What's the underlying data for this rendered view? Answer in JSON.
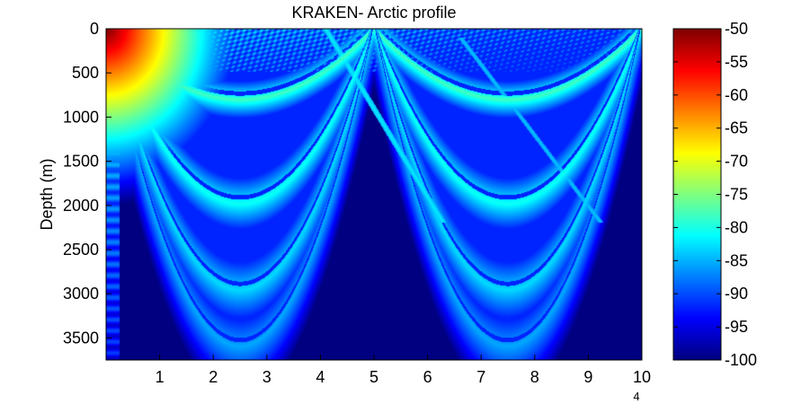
{
  "chart_data": {
    "type": "heatmap",
    "title": "KRAKEN- Arctic profile",
    "ylabel": "Depth (m)",
    "xlabel": "",
    "x_range": [
      0,
      10
    ],
    "x_ticks": [
      "1",
      "2",
      "3",
      "4",
      "5",
      "6",
      "7",
      "8",
      "9",
      "10"
    ],
    "x_exponent_label": "4",
    "y_range": [
      0,
      3750
    ],
    "y_reversed": true,
    "y_ticks": [
      "0",
      "500",
      "1000",
      "1500",
      "2000",
      "2500",
      "3000",
      "3500"
    ],
    "colorbar": {
      "colormap": "jet",
      "range": [
        -100,
        -50
      ],
      "ticks": [
        "-50",
        "-55",
        "-60",
        "-65",
        "-70",
        "-75",
        "-80",
        "-85",
        "-90",
        "-95",
        "-100"
      ]
    },
    "background_level": -100,
    "source_level": -50,
    "convergence_zones": [
      {
        "x_start": 0,
        "x_end": 5.0,
        "depth_bottom": 3600,
        "caustic_depths": [
          800,
          1800,
          2600
        ]
      },
      {
        "x_start": 5.0,
        "x_end": 10.0,
        "depth_bottom": 3600,
        "caustic_depths": [
          800,
          1800,
          2600
        ]
      }
    ],
    "grid": false
  }
}
